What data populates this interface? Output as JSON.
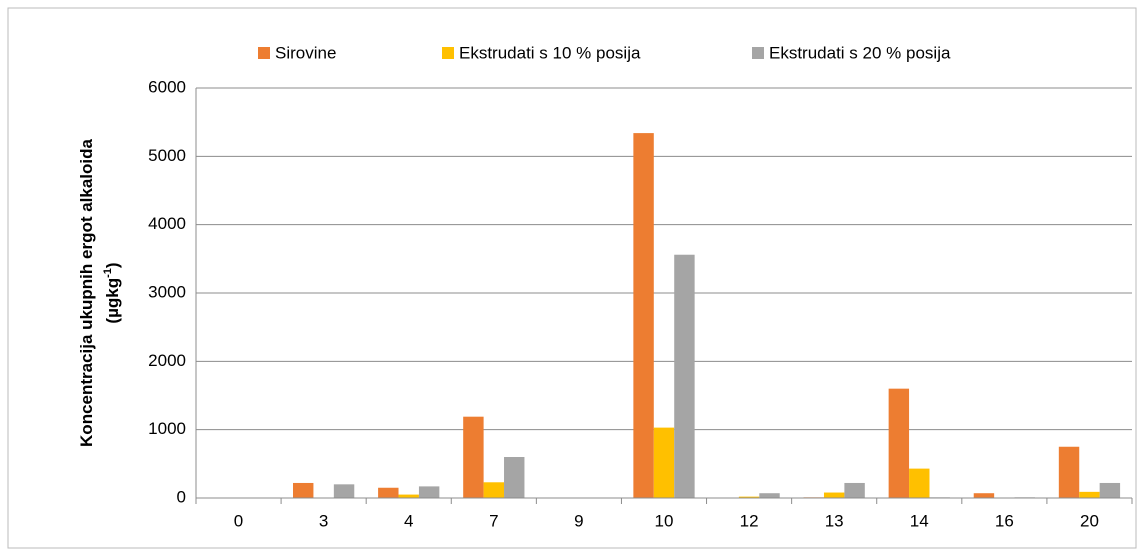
{
  "chart_data": {
    "type": "bar",
    "y_label": {
      "line1": "Koncentracija ukupnih ergot alkaloida",
      "line2": "(µgkg",
      "sup": "-1",
      "end": ")"
    },
    "categories": [
      "0",
      "3",
      "4",
      "7",
      "9",
      "10",
      "12",
      "13",
      "14",
      "16",
      "20"
    ],
    "series": [
      {
        "name": "Sirovine",
        "color": "#ed7d31",
        "values": [
          0,
          220,
          150,
          1190,
          0,
          5340,
          0,
          10,
          1600,
          70,
          750
        ]
      },
      {
        "name": "Ekstrudati s 10 % posija",
        "color": "#ffc000",
        "values": [
          0,
          0,
          50,
          230,
          0,
          1030,
          20,
          80,
          430,
          0,
          90
        ]
      },
      {
        "name": "Ekstrudati s 20 % posija",
        "color": "#a5a5a5",
        "values": [
          0,
          200,
          170,
          600,
          0,
          3560,
          70,
          220,
          10,
          10,
          220
        ]
      }
    ],
    "ylim": [
      0,
      6000
    ],
    "yticks": [
      0,
      1000,
      2000,
      3000,
      4000,
      5000,
      6000
    ],
    "grid": true,
    "legend": "top"
  }
}
